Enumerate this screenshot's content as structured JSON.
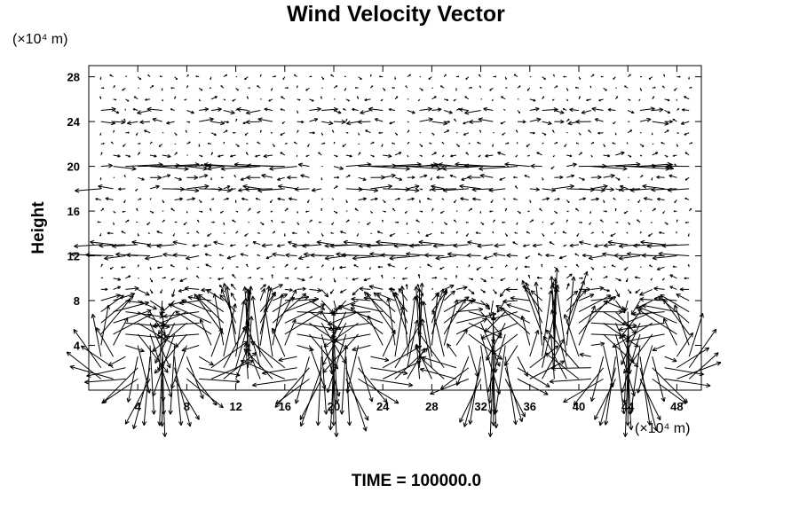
{
  "chart_data": {
    "type": "vector_field",
    "title": "Wind Velocity Vector",
    "ylabel": "Height",
    "x_unit": "(×10⁴ m)",
    "y_unit": "(×10⁴ m)",
    "footer": "TIME = 100000.0",
    "xlim": [
      0,
      50
    ],
    "ylim": [
      0,
      29
    ],
    "x_ticks": [
      4,
      8,
      12,
      16,
      20,
      24,
      28,
      32,
      36,
      40,
      44,
      48
    ],
    "y_ticks": [
      4,
      8,
      12,
      16,
      20,
      24,
      28
    ],
    "grid_dx": 1,
    "grid_dy": 1,
    "eddy_centres_x": [
      3,
      9,
      17,
      23,
      31,
      35,
      41,
      47
    ],
    "max_vector_length": 3.0
  }
}
